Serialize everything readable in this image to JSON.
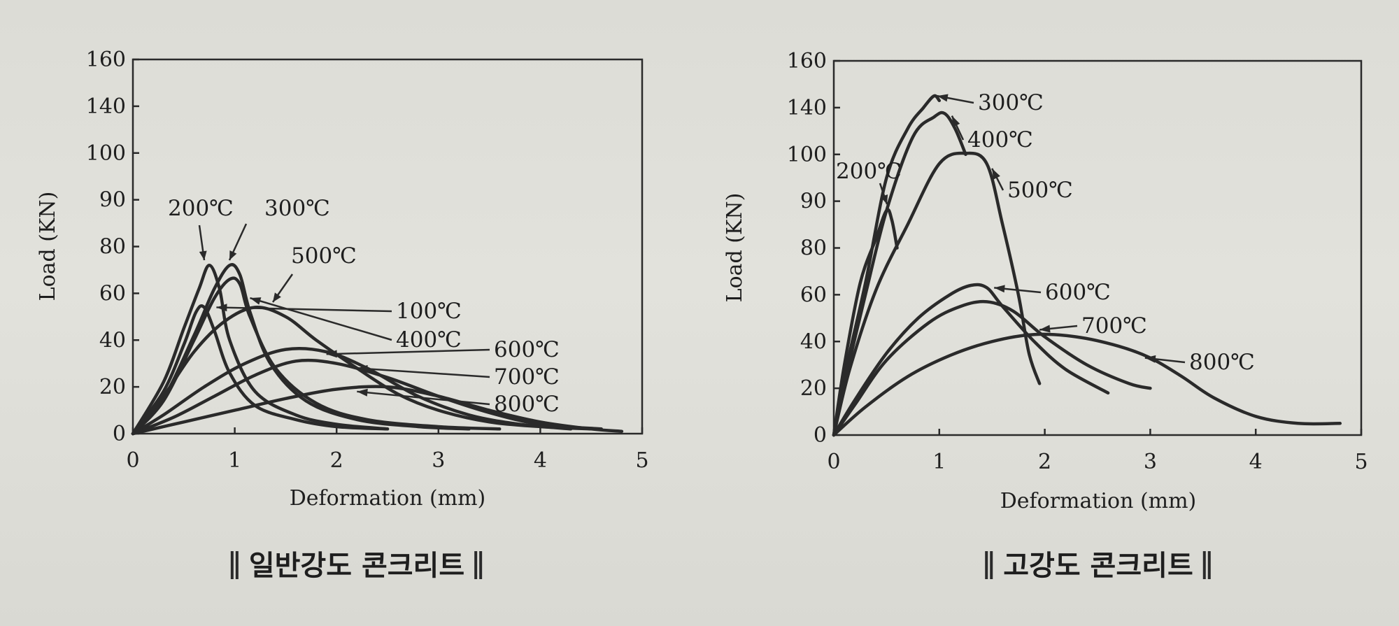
{
  "chart_data": [
    {
      "type": "line",
      "caption": "일반강도 콘크리트",
      "xlabel": "Deformation (mm)",
      "ylabel": "Load (KN)",
      "xlim": [
        0,
        5
      ],
      "xticks": [
        0,
        1,
        2,
        3,
        4,
        5
      ],
      "yticks": [
        0,
        20,
        40,
        60,
        80,
        90,
        100,
        140,
        160
      ],
      "series": [
        {
          "name": "100℃",
          "x": [
            0,
            0.3,
            0.5,
            0.62,
            0.7,
            0.8,
            0.95,
            1.2,
            1.6,
            2.0,
            2.5
          ],
          "y": [
            0,
            18,
            38,
            52,
            54,
            44,
            26,
            12,
            6,
            3,
            2
          ]
        },
        {
          "name": "200℃",
          "x": [
            0,
            0.3,
            0.5,
            0.65,
            0.75,
            0.85,
            0.95,
            1.2,
            1.6,
            2.0,
            2.5
          ],
          "y": [
            0,
            22,
            45,
            62,
            72,
            62,
            40,
            18,
            8,
            4,
            2
          ]
        },
        {
          "name": "300℃",
          "x": [
            0,
            0.3,
            0.6,
            0.8,
            0.95,
            1.05,
            1.15,
            1.35,
            1.7,
            2.2,
            2.8,
            3.3
          ],
          "y": [
            0,
            15,
            42,
            62,
            72,
            68,
            52,
            30,
            14,
            6,
            3,
            2
          ]
        },
        {
          "name": "400℃",
          "x": [
            0,
            0.3,
            0.6,
            0.8,
            0.95,
            1.05,
            1.15,
            1.4,
            1.8,
            2.3,
            3.0,
            3.6
          ],
          "y": [
            0,
            14,
            40,
            58,
            66,
            64,
            50,
            28,
            13,
            6,
            3,
            2
          ]
        },
        {
          "name": "500℃",
          "x": [
            0,
            0.3,
            0.6,
            0.9,
            1.2,
            1.5,
            1.8,
            2.2,
            2.6,
            3.0,
            3.5,
            4.0,
            4.5
          ],
          "y": [
            0,
            16,
            35,
            48,
            54,
            50,
            40,
            28,
            17,
            10,
            5,
            3,
            2
          ]
        },
        {
          "name": "600℃",
          "x": [
            0,
            0.3,
            0.7,
            1.1,
            1.5,
            1.9,
            2.3,
            2.8,
            3.3,
            3.8,
            4.3
          ],
          "y": [
            0,
            8,
            20,
            30,
            36,
            35,
            28,
            16,
            8,
            4,
            2
          ]
        },
        {
          "name": "700℃",
          "x": [
            0,
            0.4,
            0.8,
            1.2,
            1.6,
            2.0,
            2.5,
            3.0,
            3.5,
            4.0,
            4.6
          ],
          "y": [
            0,
            7,
            16,
            25,
            31,
            30,
            24,
            16,
            9,
            4,
            2
          ]
        },
        {
          "name": "800℃",
          "x": [
            0,
            0.5,
            1.0,
            1.5,
            2.0,
            2.5,
            3.0,
            3.5,
            4.0,
            4.5,
            4.8
          ],
          "y": [
            0,
            5,
            10,
            15,
            19,
            20,
            16,
            10,
            5,
            2,
            1
          ]
        }
      ]
    },
    {
      "type": "line",
      "caption": "고강도 콘크리트",
      "xlabel": "Deformation (mm)",
      "ylabel": "Load (KN)",
      "xlim": [
        0,
        5
      ],
      "xticks": [
        0,
        1,
        2,
        3,
        4,
        5
      ],
      "yticks": [
        0,
        20,
        40,
        60,
        80,
        90,
        100,
        140,
        160
      ],
      "series": [
        {
          "name": "200℃",
          "x": [
            0,
            0.1,
            0.25,
            0.4,
            0.5,
            0.55,
            0.6
          ],
          "y": [
            0,
            30,
            65,
            82,
            88,
            86,
            80
          ]
        },
        {
          "name": "300℃",
          "x": [
            0,
            0.1,
            0.3,
            0.5,
            0.7,
            0.85,
            0.95,
            1.0
          ],
          "y": [
            0,
            25,
            65,
            95,
            122,
            140,
            145,
            143
          ]
        },
        {
          "name": "400℃",
          "x": [
            0,
            0.1,
            0.3,
            0.5,
            0.75,
            0.95,
            1.05,
            1.15,
            1.25
          ],
          "y": [
            0,
            22,
            60,
            88,
            115,
            132,
            135,
            122,
            100
          ]
        },
        {
          "name": "500℃",
          "x": [
            0,
            0.15,
            0.4,
            0.7,
            1.0,
            1.25,
            1.45,
            1.6,
            1.75,
            1.85,
            1.95
          ],
          "y": [
            0,
            28,
            62,
            85,
            98,
            101,
            98,
            85,
            60,
            35,
            22
          ]
        },
        {
          "name": "600℃",
          "x": [
            0,
            0.2,
            0.5,
            0.8,
            1.1,
            1.3,
            1.45,
            1.6,
            1.9,
            2.2,
            2.6
          ],
          "y": [
            0,
            15,
            35,
            50,
            60,
            64,
            63,
            55,
            40,
            28,
            18
          ]
        },
        {
          "name": "700℃",
          "x": [
            0,
            0.2,
            0.5,
            0.9,
            1.2,
            1.45,
            1.7,
            2.0,
            2.4,
            2.8,
            3.0
          ],
          "y": [
            0,
            13,
            32,
            48,
            55,
            57,
            53,
            42,
            30,
            22,
            20
          ]
        },
        {
          "name": "800℃",
          "x": [
            0,
            0.3,
            0.7,
            1.1,
            1.5,
            1.9,
            2.3,
            2.7,
            3.0,
            3.3,
            3.6,
            4.0,
            4.4,
            4.8
          ],
          "y": [
            0,
            12,
            25,
            34,
            40,
            43,
            42,
            38,
            33,
            25,
            16,
            8,
            5,
            5
          ]
        }
      ]
    }
  ]
}
